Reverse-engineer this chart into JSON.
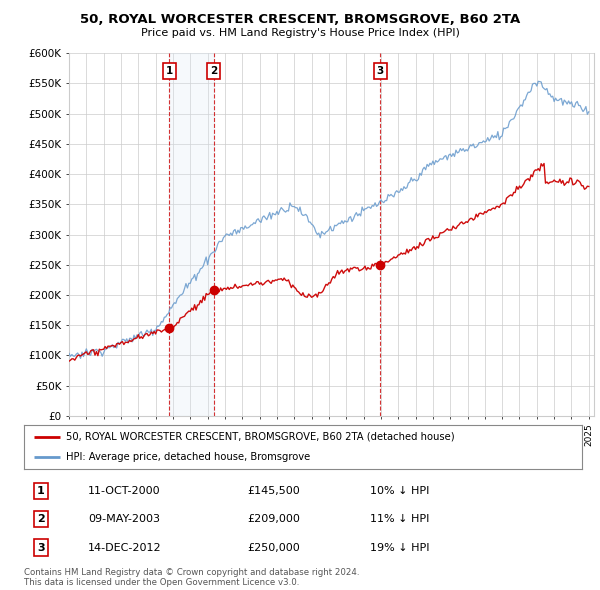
{
  "title": "50, ROYAL WORCESTER CRESCENT, BROMSGROVE, B60 2TA",
  "subtitle": "Price paid vs. HM Land Registry's House Price Index (HPI)",
  "ylabel_ticks": [
    "£0",
    "£50K",
    "£100K",
    "£150K",
    "£200K",
    "£250K",
    "£300K",
    "£350K",
    "£400K",
    "£450K",
    "£500K",
    "£550K",
    "£600K"
  ],
  "ytick_values": [
    0,
    50000,
    100000,
    150000,
    200000,
    250000,
    300000,
    350000,
    400000,
    450000,
    500000,
    550000,
    600000
  ],
  "ylim": [
    0,
    600000
  ],
  "x_start_year": 1995,
  "x_end_year": 2025,
  "sale_color": "#cc0000",
  "hpi_color": "#6699cc",
  "hpi_fill_color": "#dde8f5",
  "sale_dates_float": [
    2000.79,
    2003.36,
    2012.96
  ],
  "sale_prices": [
    145500,
    209000,
    250000
  ],
  "sale_labels": [
    "1",
    "2",
    "3"
  ],
  "shade_between_1_2": true,
  "legend_sale": "50, ROYAL WORCESTER CRESCENT, BROMSGROVE, B60 2TA (detached house)",
  "legend_hpi": "HPI: Average price, detached house, Bromsgrove",
  "table_entries": [
    {
      "num": "1",
      "date": "11-OCT-2000",
      "price": "£145,500",
      "pct": "10% ↓ HPI"
    },
    {
      "num": "2",
      "date": "09-MAY-2003",
      "price": "£209,000",
      "pct": "11% ↓ HPI"
    },
    {
      "num": "3",
      "date": "14-DEC-2012",
      "price": "£250,000",
      "pct": "19% ↓ HPI"
    }
  ],
  "footer": "Contains HM Land Registry data © Crown copyright and database right 2024.\nThis data is licensed under the Open Government Licence v3.0.",
  "background_color": "#ffffff",
  "grid_color": "#cccccc"
}
